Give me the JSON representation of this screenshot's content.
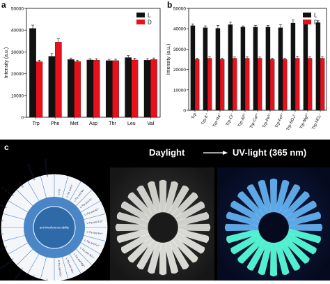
{
  "panels": {
    "a": "a",
    "b": "b",
    "c": "c"
  },
  "legend": {
    "L": "L",
    "D": "D"
  },
  "colors": {
    "L": "#111111",
    "D": "#e8101a",
    "uv": "#4ef0d0",
    "wheel": "#4a86c6"
  },
  "chart_data": [
    {
      "type": "bar",
      "panel": "a",
      "categories": [
        "Trp",
        "Phe",
        "Met",
        "Asp",
        "Thr",
        "Leu",
        "Val"
      ],
      "series": [
        {
          "name": "L",
          "values": [
            40800,
            28000,
            26500,
            26300,
            26000,
            27400,
            26200
          ],
          "errors": [
            1500,
            1200,
            700,
            600,
            600,
            900,
            700
          ]
        },
        {
          "name": "D",
          "values": [
            25500,
            34500,
            25600,
            26200,
            26000,
            26300,
            26500
          ],
          "errors": [
            700,
            1500,
            600,
            700,
            600,
            800,
            700
          ]
        }
      ],
      "ylabel": "Intensity (a.u.)",
      "ylim": [
        0,
        50000
      ],
      "yticks": [
        0,
        10000,
        20000,
        30000,
        40000,
        50000
      ],
      "ytick_labels": [
        "0",
        "10000",
        "20000",
        "30000",
        "40000",
        "50000"
      ],
      "legend_position": "top-right"
    },
    {
      "type": "bar",
      "panel": "b",
      "categories": [
        "Trp",
        "Trp-K⁺",
        "Trp-Na⁺",
        "Trp-Cl⁻",
        "Trp-Al³⁺",
        "Trp-Ca²⁺",
        "Trp-Fe³⁺",
        "Trp-Fe²⁺",
        "Trp-SO₄²⁻",
        "Trp-Mg²⁺",
        "Trp-NO₃⁻"
      ],
      "series": [
        {
          "name": "L",
          "values": [
            41500,
            40500,
            40200,
            42000,
            40800,
            40800,
            40800,
            40500,
            42800,
            43000,
            43000
          ],
          "errors": [
            900,
            900,
            1400,
            1200,
            600,
            900,
            800,
            1500,
            1500,
            900,
            900
          ]
        },
        {
          "name": "D",
          "values": [
            25000,
            25500,
            25000,
            25500,
            25500,
            25500,
            25000,
            25000,
            25500,
            25500,
            25500
          ],
          "errors": [
            600,
            700,
            600,
            600,
            800,
            600,
            600,
            600,
            1000,
            700,
            700
          ]
        }
      ],
      "ylabel": "Intensity (a.u.)",
      "ylim": [
        0,
        50000
      ],
      "yticks": [
        0,
        10000,
        20000,
        30000,
        40000,
        50000
      ],
      "ytick_labels": [
        "0",
        "10000",
        "20000",
        "30000",
        "40000",
        "50000"
      ],
      "legend_position": "top-right"
    }
  ],
  "photos": {
    "daylight": "Daylight",
    "uv": "UV-light (365 nm)",
    "wheel_center": "anti-interference ability",
    "wheel_labels": [
      "L-Trp",
      "L-Trp and K⁺",
      "L-Trp and Na⁺",
      "L-Trp and Cl⁻",
      "L-Trp and Al³⁺",
      "L-Trp and Ca²⁺",
      "L-Trp and Fe³⁺",
      "L-Trp and Fe²⁺",
      "L-Trp and SO₄²⁻",
      "L-Trp and Mg²⁺",
      "L-Trp and NO₃⁻",
      "D-Trp and NO₃⁻",
      "D-Trp and Mg²⁺",
      "D-Trp and SO₄²⁻",
      "D-Trp and Fe²⁺",
      "D-Trp and Fe³⁺",
      "D-Trp and Ca²⁺",
      "D-Trp and Al³⁺",
      "D-Trp and Cl⁻",
      "D-Trp and Na⁺",
      "D-Trp and K⁺",
      "D-Trp",
      "Ultra pure water",
      "Ultra pure water"
    ]
  }
}
